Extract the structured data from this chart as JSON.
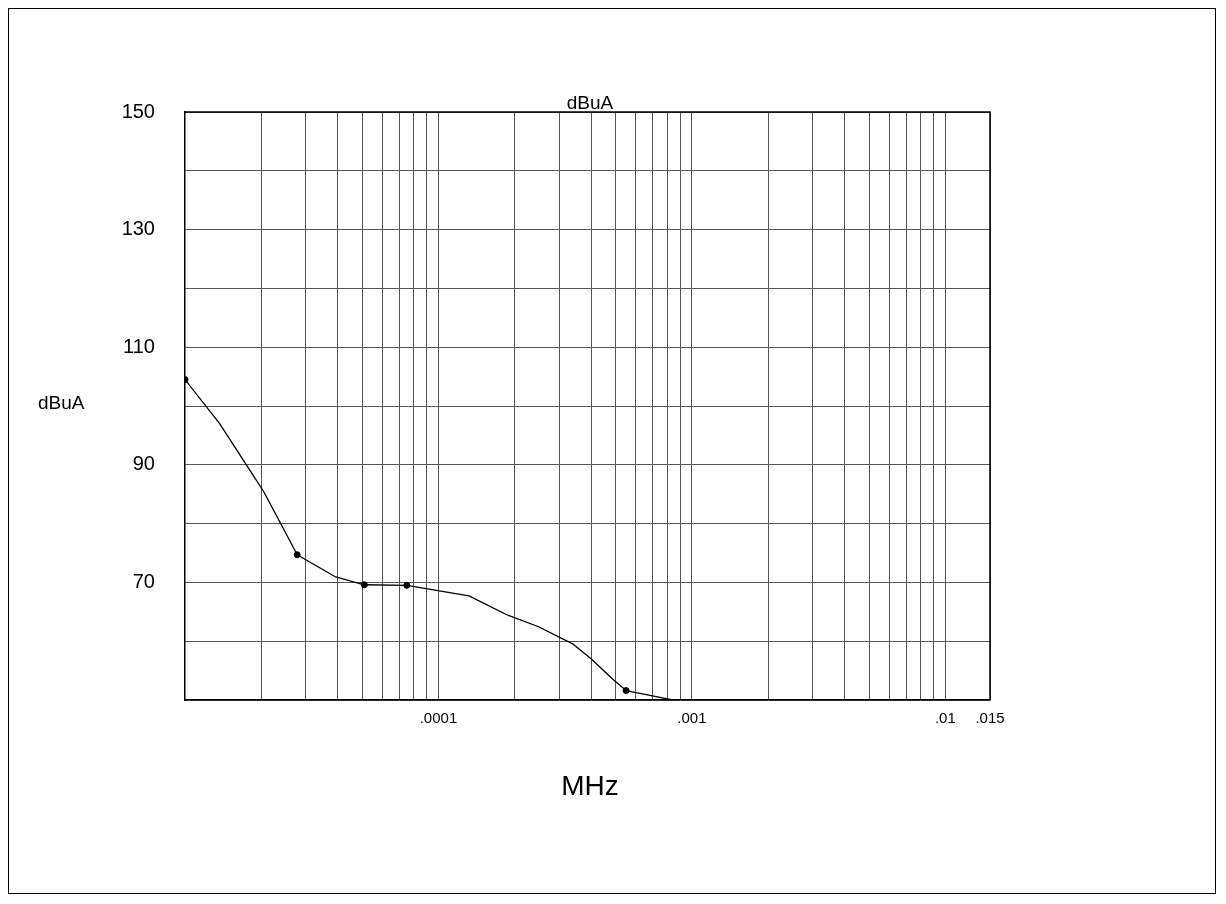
{
  "chart_data": {
    "type": "line",
    "title": "dBuA",
    "xlabel": "MHz",
    "ylabel": "dBuA",
    "log": "x",
    "grid": true,
    "line_style": "solid",
    "marker": "none",
    "xlim": [
      1e-05,
      0.015
    ],
    "xticks": [
      {
        "value": 2e-05,
        "label": null
      },
      {
        "value": 3e-05,
        "label": null
      },
      {
        "value": 4e-05,
        "label": null
      },
      {
        "value": 5e-05,
        "label": null
      },
      {
        "value": 6e-05,
        "label": null
      },
      {
        "value": 7e-05,
        "label": null
      },
      {
        "value": 8e-05,
        "label": null
      },
      {
        "value": 9e-05,
        "label": null
      },
      {
        "value": 0.0001,
        "label": ".0001"
      },
      {
        "value": 0.0002,
        "label": null
      },
      {
        "value": 0.0003,
        "label": null
      },
      {
        "value": 0.0004,
        "label": null
      },
      {
        "value": 0.0005,
        "label": null
      },
      {
        "value": 0.0006,
        "label": null
      },
      {
        "value": 0.0007,
        "label": null
      },
      {
        "value": 0.0008,
        "label": null
      },
      {
        "value": 0.0009,
        "label": null
      },
      {
        "value": 0.001,
        "label": ".001"
      },
      {
        "value": 0.002,
        "label": null
      },
      {
        "value": 0.003,
        "label": null
      },
      {
        "value": 0.004,
        "label": null
      },
      {
        "value": 0.005,
        "label": null
      },
      {
        "value": 0.006,
        "label": null
      },
      {
        "value": 0.007,
        "label": null
      },
      {
        "value": 0.008,
        "label": null
      },
      {
        "value": 0.009,
        "label": null
      },
      {
        "value": 0.01,
        "label": ".01"
      },
      {
        "value": 0.015,
        "label": ".015"
      }
    ],
    "ylim": [
      50,
      150
    ],
    "yticks": [
      {
        "value": 50,
        "label": null
      },
      {
        "value": 60,
        "label": null
      },
      70,
      {
        "value": 80,
        "label": null
      },
      90,
      {
        "value": 100,
        "label": null
      },
      110,
      {
        "value": 120,
        "label": null
      },
      130,
      {
        "value": 140,
        "label": null
      },
      150
    ],
    "series": [
      {
        "color": "#000000",
        "x": [
          1e-05,
          1.37e-05,
          2.04e-05,
          2.42e-05,
          2.77e-05,
          3.9e-05,
          5.1e-05,
          7.5e-05,
          0.000132,
          0.000186,
          0.000247,
          0.00034,
          0.0004,
          0.000485,
          0.00055,
          0.00066,
          0.00084
        ],
        "values": [
          104.5,
          97,
          85.5,
          79.5,
          74.7,
          71,
          69.6,
          69.5,
          67.7,
          64.5,
          62.5,
          59.5,
          57,
          53.6,
          51.6,
          50.9,
          50
        ]
      },
      {
        "type": "scatter",
        "marker": "circle",
        "color": "#000000",
        "x": [
          1e-05,
          2.77e-05,
          5.1e-05,
          7.5e-05,
          0.00055
        ],
        "values": [
          104.5,
          74.7,
          69.6,
          69.5,
          51.6
        ]
      }
    ]
  }
}
